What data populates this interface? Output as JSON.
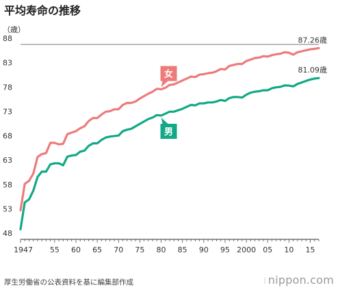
{
  "title": "平均寿命の推移",
  "source": "厚生労働省の公表資料を基に編集部作成",
  "brand": {
    "mark": "⦙",
    "name": "nippon.com"
  },
  "colors": {
    "female": "#ee7a7a",
    "male": "#11a886",
    "axis": "#555555",
    "text": "#333333"
  },
  "chart_data": {
    "type": "line",
    "unit_label": "（歳）",
    "ylim": [
      48,
      88
    ],
    "xlim": [
      1947,
      2017
    ],
    "yticks": [
      48,
      53,
      58,
      63,
      68,
      73,
      78,
      83,
      88
    ],
    "xticks": [
      {
        "value": 1947,
        "label": "1947"
      },
      {
        "value": 1955,
        "label": "55"
      },
      {
        "value": 1960,
        "label": "60"
      },
      {
        "value": 1965,
        "label": "65"
      },
      {
        "value": 1970,
        "label": "70"
      },
      {
        "value": 1975,
        "label": "75"
      },
      {
        "value": 1980,
        "label": "80"
      },
      {
        "value": 1985,
        "label": "85"
      },
      {
        "value": 1990,
        "label": "90"
      },
      {
        "value": 1995,
        "label": "95"
      },
      {
        "value": 2000,
        "label": "2000"
      },
      {
        "value": 2005,
        "label": "05"
      },
      {
        "value": 2010,
        "label": "10"
      },
      {
        "value": 2015,
        "label": "15"
      }
    ],
    "grid": false,
    "series": [
      {
        "name": "女",
        "color": "#ee7a7a",
        "end_label": "87.26歳",
        "x": [
          1947,
          1948,
          1949,
          1950,
          1951,
          1952,
          1953,
          1954,
          1955,
          1956,
          1957,
          1958,
          1959,
          1960,
          1961,
          1962,
          1963,
          1964,
          1965,
          1966,
          1967,
          1968,
          1969,
          1970,
          1971,
          1972,
          1973,
          1974,
          1975,
          1976,
          1977,
          1978,
          1979,
          1980,
          1981,
          1982,
          1983,
          1984,
          1985,
          1986,
          1987,
          1988,
          1989,
          1990,
          1991,
          1992,
          1993,
          1994,
          1995,
          1996,
          1997,
          1998,
          1999,
          2000,
          2001,
          2002,
          2003,
          2004,
          2005,
          2006,
          2007,
          2008,
          2009,
          2010,
          2011,
          2012,
          2013,
          2014,
          2015,
          2016,
          2017
        ],
        "values": [
          53.96,
          59.4,
          60.0,
          61.5,
          64.9,
          65.5,
          65.7,
          67.8,
          67.8,
          67.5,
          67.6,
          69.6,
          69.9,
          70.2,
          70.8,
          71.2,
          72.3,
          72.9,
          72.9,
          73.6,
          74.2,
          74.3,
          74.7,
          74.7,
          75.6,
          76.0,
          76.0,
          76.3,
          76.9,
          77.4,
          77.9,
          78.3,
          78.9,
          78.8,
          79.1,
          79.7,
          79.8,
          80.2,
          80.6,
          81.0,
          81.4,
          81.3,
          81.8,
          81.9,
          82.1,
          82.2,
          82.5,
          82.98,
          82.85,
          83.6,
          83.8,
          84.0,
          83.99,
          84.6,
          84.9,
          85.2,
          85.3,
          85.6,
          85.5,
          85.8,
          86.0,
          86.1,
          86.4,
          86.3,
          85.9,
          86.4,
          86.6,
          86.8,
          87.0,
          87.1,
          87.26
        ]
      },
      {
        "name": "男",
        "color": "#11a886",
        "end_label": "81.09歳",
        "x": [
          1947,
          1948,
          1949,
          1950,
          1951,
          1952,
          1953,
          1954,
          1955,
          1956,
          1957,
          1958,
          1959,
          1960,
          1961,
          1962,
          1963,
          1964,
          1965,
          1966,
          1967,
          1968,
          1969,
          1970,
          1971,
          1972,
          1973,
          1974,
          1975,
          1976,
          1977,
          1978,
          1979,
          1980,
          1981,
          1982,
          1983,
          1984,
          1985,
          1986,
          1987,
          1988,
          1989,
          1990,
          1991,
          1992,
          1993,
          1994,
          1995,
          1996,
          1997,
          1998,
          1999,
          2000,
          2001,
          2002,
          2003,
          2004,
          2005,
          2006,
          2007,
          2008,
          2009,
          2010,
          2011,
          2012,
          2013,
          2014,
          2015,
          2016,
          2017
        ],
        "values": [
          50.06,
          55.6,
          56.2,
          58.0,
          60.8,
          61.9,
          61.9,
          63.4,
          63.6,
          63.6,
          63.2,
          64.98,
          65.2,
          65.3,
          66.0,
          66.2,
          67.2,
          67.7,
          67.7,
          68.4,
          68.9,
          69.1,
          69.2,
          69.3,
          70.2,
          70.5,
          70.7,
          71.2,
          71.7,
          72.2,
          72.7,
          73.0,
          73.5,
          73.4,
          73.8,
          74.2,
          74.2,
          74.5,
          74.8,
          75.2,
          75.6,
          75.5,
          75.9,
          75.9,
          76.1,
          76.1,
          76.3,
          76.6,
          76.4,
          77.0,
          77.2,
          77.2,
          77.1,
          77.7,
          78.1,
          78.3,
          78.4,
          78.6,
          78.6,
          79.0,
          79.2,
          79.3,
          79.6,
          79.55,
          79.4,
          79.9,
          80.2,
          80.5,
          80.8,
          81.0,
          81.09
        ]
      }
    ],
    "annotations": [
      {
        "text": "女",
        "series": 0,
        "x": 1980
      },
      {
        "text": "男",
        "series": 1,
        "x": 1980
      }
    ]
  }
}
